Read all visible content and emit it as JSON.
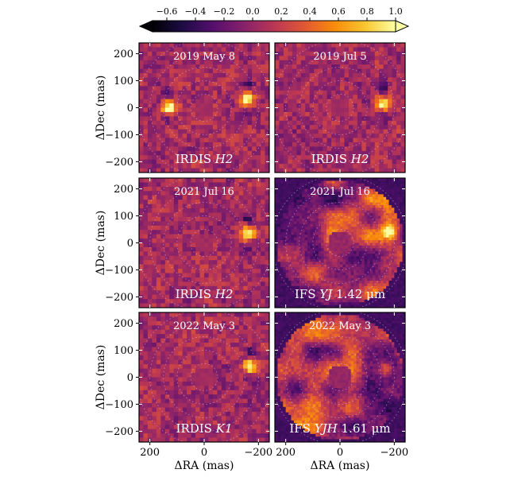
{
  "chart_data": {
    "type": "heatmap",
    "colorbar": {
      "colormap": "inferno",
      "range": [
        -0.7,
        1.0
      ],
      "extend": "both",
      "ticks": [
        -0.6,
        -0.4,
        -0.2,
        0.0,
        0.2,
        0.4,
        0.6,
        0.8,
        1.0
      ],
      "tick_labels": [
        "−0.6",
        "−0.4",
        "−0.2",
        "0.0",
        "0.2",
        "0.4",
        "0.6",
        "0.8",
        "1.0"
      ]
    },
    "xlabel": "ΔRA (mas)",
    "ylabel": "ΔDec (mas)",
    "xlim": [
      240,
      -240
    ],
    "ylim": [
      -240,
      240
    ],
    "xticks": [
      200,
      0,
      -200
    ],
    "xtick_labels": [
      "200",
      "0",
      "−200"
    ],
    "yticks": [
      200,
      100,
      0,
      -100,
      -200
    ],
    "ytick_labels": [
      "200",
      "100",
      "0",
      "−100",
      "−200"
    ],
    "grid": "dotted concentric circles",
    "panels": [
      {
        "date": "2019 May 8",
        "instrument": "IRDIS",
        "band": "H2",
        "suffix": "",
        "sources": [
          {
            "x": -160,
            "y": 30,
            "peak": 1.0
          },
          {
            "x": 130,
            "y": 0,
            "peak": 1.0
          }
        ]
      },
      {
        "date": "2019 Jul 5",
        "instrument": "IRDIS",
        "band": "H2",
        "suffix": "",
        "sources": [
          {
            "x": -160,
            "y": 15,
            "peak": 1.0
          }
        ]
      },
      {
        "date": "2021 Jul 16",
        "instrument": "IRDIS",
        "band": "H2",
        "suffix": "",
        "sources": [
          {
            "x": -160,
            "y": 35,
            "peak": 1.0
          }
        ]
      },
      {
        "date": "2021 Jul 16",
        "instrument": "IFS",
        "band": "YJ",
        "suffix": "1.42 μm",
        "sources": [
          {
            "x": -180,
            "y": 40,
            "peak": 0.9
          }
        ]
      },
      {
        "date": "2022 May 3",
        "instrument": "IRDIS",
        "band": "K1",
        "suffix": "",
        "sources": [
          {
            "x": -170,
            "y": 40,
            "peak": 1.0
          }
        ]
      },
      {
        "date": "2022 May 3",
        "instrument": "IFS",
        "band": "YJH",
        "suffix": "1.61 μm",
        "sources": [
          {
            "x": -170,
            "y": 30,
            "peak": 0.8
          }
        ]
      }
    ]
  }
}
